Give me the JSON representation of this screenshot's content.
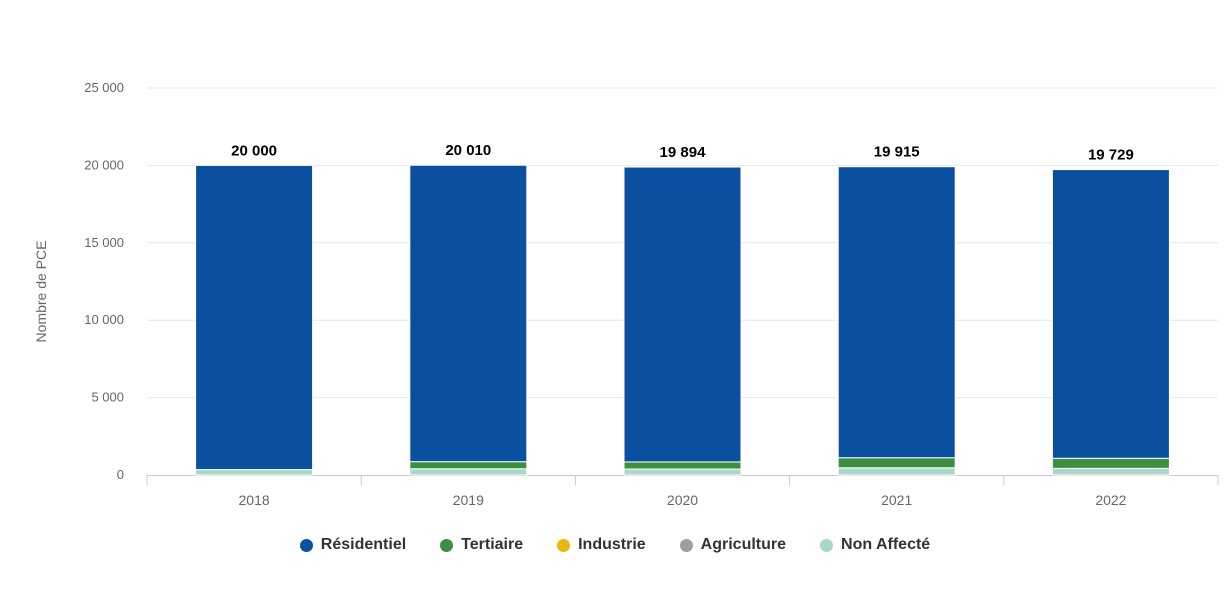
{
  "chart_data": {
    "type": "bar",
    "stacked": true,
    "title": "",
    "xlabel": "",
    "ylabel": "Nombre de PCE",
    "ylim": [
      0,
      25000
    ],
    "yticks": [
      0,
      5000,
      10000,
      15000,
      20000,
      25000
    ],
    "ytick_labels": [
      "0",
      "5 000",
      "10 000",
      "15 000",
      "20 000",
      "25 000"
    ],
    "categories": [
      "2018",
      "2019",
      "2020",
      "2021",
      "2022"
    ],
    "grid": true,
    "legend_position": "bottom",
    "totals": [
      20000,
      20010,
      19894,
      19915,
      19729
    ],
    "total_labels": [
      "20 000",
      "20 010",
      "19 894",
      "19 915",
      "19 729"
    ],
    "series": [
      {
        "name": "Résidentiel",
        "color": "#0b4fa0",
        "values": [
          19650,
          19150,
          19050,
          18800,
          18650
        ]
      },
      {
        "name": "Tertiaire",
        "color": "#3e8e41",
        "values": [
          0,
          460,
          460,
          650,
          650
        ]
      },
      {
        "name": "Industrie",
        "color": "#e8b80f",
        "values": [
          0,
          0,
          0,
          0,
          0
        ]
      },
      {
        "name": "Agriculture",
        "color": "#9e9e9e",
        "values": [
          0,
          0,
          0,
          0,
          0
        ]
      },
      {
        "name": "Non Affecté",
        "color": "#a8d8c8",
        "values": [
          350,
          400,
          384,
          465,
          429
        ]
      }
    ]
  }
}
